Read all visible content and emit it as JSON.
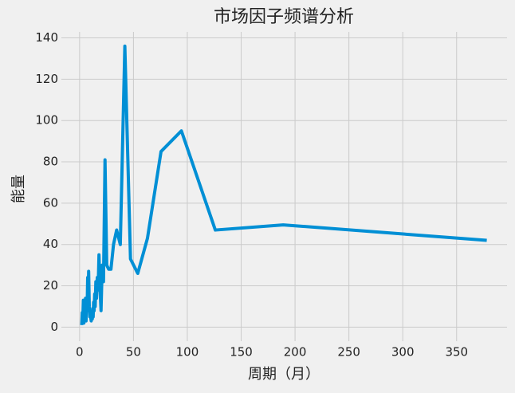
{
  "chart_data": {
    "type": "line",
    "title": "市场因子频谱分析",
    "xlabel": "周期（月）",
    "ylabel": "能量",
    "x": [
      378,
      189,
      126,
      94.5,
      75.6,
      63,
      54,
      47.25,
      42,
      37.8,
      34.4,
      31.5,
      29.1,
      27,
      25.2,
      23.6,
      22.2,
      21,
      19.9,
      18.9,
      18,
      17.2,
      16.4,
      15.75,
      15.1,
      14.5,
      14,
      13.5,
      13,
      12.6,
      12.2,
      11.8,
      11.5,
      10.8,
      10,
      9.5,
      9,
      8.4,
      8,
      7.5,
      7,
      6.5,
      6,
      5.5,
      5,
      4.5,
      4,
      3.5,
      3,
      2.5,
      2
    ],
    "series": [
      {
        "name": "能量",
        "color": "#008fd5",
        "values": [
          42,
          49.5,
          47,
          95,
          85,
          43,
          26,
          33,
          136,
          40,
          47,
          40,
          28,
          28,
          30,
          81,
          22,
          30,
          8,
          20,
          35,
          18,
          24,
          14,
          22,
          10,
          16,
          8,
          12,
          5,
          9,
          4,
          7,
          3,
          6,
          5,
          10,
          27,
          15,
          24,
          8,
          12,
          3,
          14,
          5,
          10,
          2,
          13,
          4,
          7,
          1
        ]
      }
    ],
    "xlim": [
      -16.9,
      396.8
    ],
    "ylim": [
      -6.8,
      142.9
    ],
    "xticks": [
      0,
      50,
      100,
      150,
      200,
      250,
      300,
      350
    ],
    "yticks": [
      0,
      20,
      40,
      60,
      80,
      100,
      120,
      140
    ],
    "grid": true
  }
}
